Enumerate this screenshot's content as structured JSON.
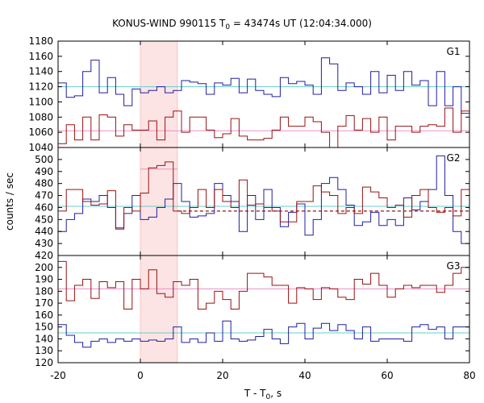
{
  "chart_data": {
    "type": "line",
    "title": "KONUS-WIND 990115 T",
    "title_sub": "0",
    "title_rest": " = 43474s UT (12:04:34.000)",
    "xlabel_main": "T - T",
    "xlabel_sub": "0",
    "xlabel_rest": ", s",
    "ylabel": "counts / sec",
    "xlim": [
      -20,
      80
    ],
    "xticks": [
      -20,
      0,
      20,
      40,
      60,
      80
    ],
    "highlight_interval": [
      0,
      9
    ],
    "colors": {
      "blue": "#1f1fa0",
      "red": "#9a1010",
      "cyan": "#66cccc",
      "pink": "#e891c8",
      "shade": "#fde4e4",
      "shade_edge": "#f4a6a6"
    },
    "bin_edges": [
      -20,
      -18,
      -16,
      -14,
      -12,
      -10,
      -8,
      -6,
      -4,
      -2,
      0,
      2,
      4,
      6,
      8,
      10,
      12,
      14,
      16,
      18,
      20,
      22,
      24,
      26,
      28,
      30,
      32,
      34,
      36,
      38,
      40,
      42,
      44,
      46,
      48,
      50,
      52,
      54,
      56,
      58,
      60,
      62,
      64,
      66,
      68,
      70,
      72,
      74,
      76,
      78,
      80
    ],
    "panels": [
      {
        "label": "G1",
        "ylim": [
          1040,
          1180
        ],
        "yticks": [
          1040,
          1060,
          1080,
          1100,
          1120,
          1140,
          1160,
          1180
        ],
        "series": [
          {
            "color": "blue",
            "values": [
              1125,
              1106,
              1108,
              1140,
              1155,
              1112,
              1132,
              1110,
              1095,
              1117,
              1112,
              1115,
              1120,
              1112,
              1115,
              1128,
              1126,
              1124,
              1110,
              1125,
              1122,
              1131,
              1112,
              1130,
              1115,
              1110,
              1107,
              1132,
              1124,
              1127,
              1122,
              1110,
              1158,
              1150,
              1115,
              1125,
              1120,
              1110,
              1140,
              1112,
              1135,
              1115,
              1140,
              1122,
              1128,
              1095,
              1140,
              1095,
              1120,
              1085
            ]
          },
          {
            "color": "red",
            "values": [
              1045,
              1070,
              1050,
              1080,
              1050,
              1083,
              1080,
              1055,
              1070,
              1063,
              1063,
              1075,
              1050,
              1080,
              1088,
              1060,
              1080,
              1080,
              1063,
              1053,
              1058,
              1078,
              1055,
              1050,
              1050,
              1052,
              1063,
              1080,
              1068,
              1068,
              1080,
              1074,
              1060,
              1040,
              1068,
              1082,
              1063,
              1078,
              1060,
              1080,
              1050,
              1068,
              1068,
              1060,
              1068,
              1070,
              1068,
              1092,
              1060,
              1088
            ]
          }
        ],
        "means": [
          {
            "color": "cyan",
            "value": 1120,
            "dashed": false
          },
          {
            "color": "pink",
            "value": 1062,
            "dashed": false
          }
        ]
      },
      {
        "label": "G2",
        "ylim": [
          420,
          510
        ],
        "yticks": [
          420,
          430,
          440,
          450,
          460,
          470,
          480,
          490,
          500
        ],
        "series": [
          {
            "color": "blue",
            "values": [
              440,
              450,
              455,
              467,
              465,
              470,
              460,
              443,
              455,
              470,
              450,
              452,
              460,
              467,
              480,
              465,
              452,
              453,
              455,
              480,
              470,
              465,
              440,
              470,
              450,
              475,
              460,
              444,
              456,
              463,
              437,
              450,
              480,
              485,
              475,
              462,
              445,
              448,
              456,
              445,
              450,
              445,
              468,
              458,
              465,
              475,
              503,
              470,
              440,
              430
            ]
          },
          {
            "color": "red",
            "values": [
              457,
              475,
              475,
              465,
              462,
              463,
              474,
              442,
              460,
              457,
              472,
              493,
              495,
              498,
              457,
              455,
              460,
              475,
              460,
              475,
              465,
              460,
              483,
              462,
              463,
              460,
              457,
              448,
              448,
              465,
              465,
              478,
              473,
              470,
              455,
              460,
              455,
              477,
              473,
              468,
              460,
              462,
              452,
              470,
              475,
              460,
              456,
              460,
              453,
              475
            ]
          }
        ],
        "means": [
          {
            "color": "cyan",
            "value": 461,
            "dashed": false
          },
          {
            "color": "pink",
            "value": 492,
            "dashed": false,
            "segment": [
              0,
              9
            ]
          },
          {
            "color": "red",
            "value": 457,
            "dashed": true,
            "segment": [
              9,
              80
            ]
          }
        ]
      },
      {
        "label": "G3",
        "ylim": [
          120,
          210
        ],
        "yticks": [
          120,
          130,
          140,
          150,
          160,
          170,
          180,
          190,
          200
        ],
        "series": [
          {
            "color": "blue",
            "values": [
              152,
              143,
              137,
              133,
              138,
              140,
              137,
              140,
              138,
              140,
              138,
              139,
              138,
              140,
              150,
              137,
              140,
              137,
              145,
              138,
              155,
              140,
              138,
              139,
              142,
              148,
              140,
              136,
              150,
              153,
              140,
              149,
              153,
              147,
              152,
              147,
              140,
              150,
              138,
              140,
              140,
              140,
              138,
              150,
              152,
              148,
              150,
              140,
              150,
              150
            ]
          },
          {
            "color": "red",
            "values": [
              205,
              172,
              185,
              190,
              174,
              188,
              183,
              188,
              165,
              190,
              182,
              198,
              178,
              175,
              188,
              185,
              190,
              165,
              170,
              180,
              173,
              165,
              180,
              195,
              195,
              192,
              185,
              185,
              170,
              183,
              182,
              173,
              183,
              182,
              175,
              173,
              190,
              186,
              195,
              185,
              175,
              182,
              185,
              183,
              185,
              185,
              179,
              185,
              195,
              200
            ]
          }
        ],
        "means": [
          {
            "color": "cyan",
            "value": 145,
            "dashed": false
          },
          {
            "color": "pink",
            "value": 182,
            "dashed": false
          }
        ]
      }
    ]
  }
}
